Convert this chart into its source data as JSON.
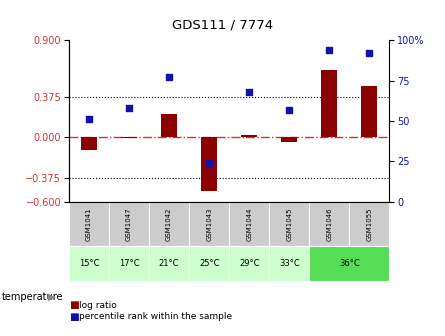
{
  "title": "GDS111 / 7774",
  "samples": [
    "GSM1041",
    "GSM1047",
    "GSM1042",
    "GSM1043",
    "GSM1044",
    "GSM1045",
    "GSM1046",
    "GSM1055"
  ],
  "log_ratios": [
    -0.12,
    -0.01,
    0.22,
    -0.5,
    0.02,
    -0.04,
    0.62,
    0.48
  ],
  "percentile_ranks": [
    51,
    58,
    77,
    24,
    68,
    57,
    94,
    92
  ],
  "bar_color": "#8B0000",
  "dot_color": "#1111aa",
  "ref_line_color": "#cc3333",
  "ylim_left": [
    -0.6,
    0.9
  ],
  "ylim_right": [
    0,
    100
  ],
  "yticks_left": [
    -0.6,
    -0.375,
    0,
    0.375,
    0.9
  ],
  "yticks_right": [
    0,
    25,
    50,
    75,
    100
  ],
  "hline_vals": [
    0.375,
    -0.375
  ],
  "background_color": "#ffffff",
  "sample_bg_color": "#cccccc",
  "temp_default_color": "#ccffcc",
  "temp_highlight_color": "#55dd55",
  "temp_data": [
    [
      0,
      1,
      "15°C"
    ],
    [
      1,
      1,
      "17°C"
    ],
    [
      2,
      1,
      "21°C"
    ],
    [
      3,
      1,
      "25°C"
    ],
    [
      4,
      1,
      "29°C"
    ],
    [
      5,
      1,
      "33°C"
    ],
    [
      6,
      2,
      "36°C"
    ]
  ]
}
